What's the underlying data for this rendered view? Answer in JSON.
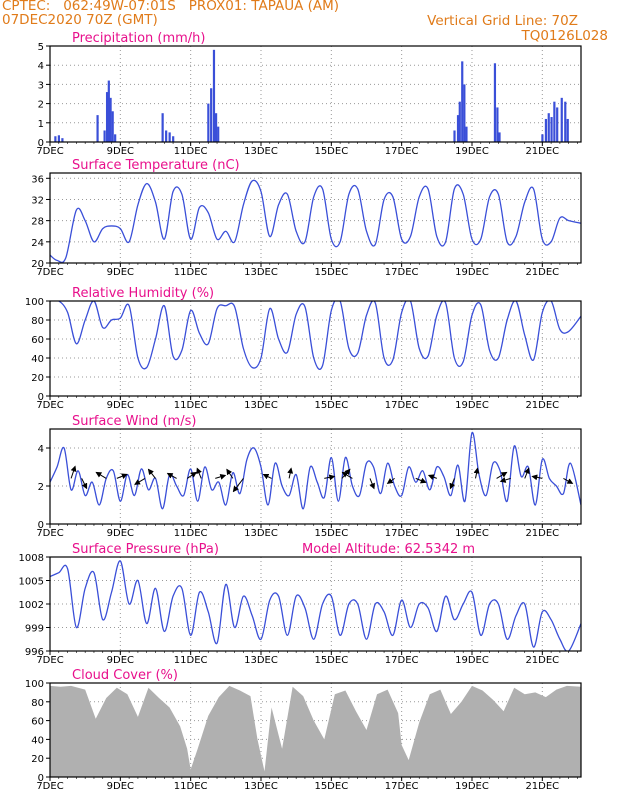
{
  "header": {
    "line1": "CPTEC:   062:49W-07:01S   PROX01: TAPAUA (AM)",
    "line2_left": "07DEC2020 70Z (GMT)",
    "line2_right": "Vertical Grid Line: 70Z",
    "line3_right": "TQ0126L028"
  },
  "colors": {
    "header": "#e07b1a",
    "title": "#e8108c",
    "series": "#3a4fd8",
    "cloud": "#b0b0b0"
  },
  "x_axis": {
    "ticks": [
      {
        "day": 7,
        "label": "7DEC"
      },
      {
        "day": 9,
        "label": "9DEC"
      },
      {
        "day": 11,
        "label": "11DEC"
      },
      {
        "day": 13,
        "label": "13DEC"
      },
      {
        "day": 15,
        "label": "15DEC"
      },
      {
        "day": 17,
        "label": "17DEC"
      },
      {
        "day": 19,
        "label": "19DEC"
      },
      {
        "day": 21,
        "label": "21DEC"
      }
    ],
    "range": [
      7,
      22.1
    ]
  },
  "chart_data": [
    {
      "type": "bar",
      "title": "Precipitation (mm/h)",
      "ylim": [
        0,
        5
      ],
      "yticks": [
        0,
        1,
        2,
        3,
        4,
        5
      ],
      "values": [
        {
          "x": 7.15,
          "y": 0.3
        },
        {
          "x": 7.25,
          "y": 0.35
        },
        {
          "x": 7.35,
          "y": 0.2
        },
        {
          "x": 8.35,
          "y": 1.4
        },
        {
          "x": 8.55,
          "y": 0.6
        },
        {
          "x": 8.62,
          "y": 2.6
        },
        {
          "x": 8.67,
          "y": 3.2
        },
        {
          "x": 8.72,
          "y": 2.3
        },
        {
          "x": 8.78,
          "y": 1.6
        },
        {
          "x": 8.85,
          "y": 0.4
        },
        {
          "x": 10.2,
          "y": 1.5
        },
        {
          "x": 10.3,
          "y": 0.6
        },
        {
          "x": 10.4,
          "y": 0.5
        },
        {
          "x": 10.5,
          "y": 0.3
        },
        {
          "x": 11.5,
          "y": 2.0
        },
        {
          "x": 11.58,
          "y": 2.8
        },
        {
          "x": 11.66,
          "y": 4.8
        },
        {
          "x": 11.72,
          "y": 1.5
        },
        {
          "x": 11.78,
          "y": 0.8
        },
        {
          "x": 18.5,
          "y": 0.6
        },
        {
          "x": 18.6,
          "y": 1.4
        },
        {
          "x": 18.65,
          "y": 2.1
        },
        {
          "x": 18.72,
          "y": 4.2
        },
        {
          "x": 18.78,
          "y": 3.0
        },
        {
          "x": 18.84,
          "y": 0.8
        },
        {
          "x": 19.65,
          "y": 4.1
        },
        {
          "x": 19.72,
          "y": 1.8
        },
        {
          "x": 19.78,
          "y": 0.5
        },
        {
          "x": 21.0,
          "y": 0.4
        },
        {
          "x": 21.1,
          "y": 1.2
        },
        {
          "x": 21.18,
          "y": 1.5
        },
        {
          "x": 21.26,
          "y": 1.3
        },
        {
          "x": 21.34,
          "y": 2.1
        },
        {
          "x": 21.42,
          "y": 1.8
        },
        {
          "x": 21.55,
          "y": 2.3
        },
        {
          "x": 21.65,
          "y": 2.1
        },
        {
          "x": 21.72,
          "y": 1.2
        }
      ]
    },
    {
      "type": "line",
      "title": "Surface Temperature (nC)",
      "ylim": [
        20,
        37
      ],
      "yticks": [
        20,
        24,
        28,
        32,
        36
      ],
      "x": [
        7.0,
        7.2,
        7.45,
        7.75,
        8.0,
        8.25,
        8.5,
        8.75,
        9.0,
        9.25,
        9.5,
        9.75,
        10.0,
        10.25,
        10.5,
        10.75,
        11.0,
        11.25,
        11.5,
        11.75,
        12.0,
        12.25,
        12.5,
        12.75,
        13.0,
        13.25,
        13.5,
        13.75,
        14.0,
        14.25,
        14.5,
        14.75,
        15.0,
        15.25,
        15.5,
        15.75,
        16.0,
        16.25,
        16.5,
        16.75,
        17.0,
        17.25,
        17.5,
        17.75,
        18.0,
        18.25,
        18.5,
        18.75,
        19.0,
        19.25,
        19.5,
        19.75,
        20.0,
        20.25,
        20.5,
        20.75,
        21.0,
        21.25,
        21.5,
        21.75,
        22.1
      ],
      "values": [
        21.5,
        20.5,
        21,
        30,
        28,
        24,
        26.5,
        27,
        26.5,
        24,
        31,
        35,
        31.5,
        24.5,
        33.5,
        33,
        24.5,
        30.5,
        29.5,
        24.5,
        26,
        24,
        31,
        35.5,
        33.5,
        25,
        31,
        33,
        26,
        24,
        32.5,
        34,
        24.5,
        24,
        33,
        34,
        26,
        23.5,
        32,
        32.5,
        24.5,
        25,
        32.5,
        34,
        25,
        24,
        34,
        33,
        24.5,
        24.5,
        32.5,
        33,
        24,
        25,
        31.5,
        34,
        24.5,
        24,
        28.5,
        28,
        27.5
      ]
    },
    {
      "type": "line",
      "title": "Relative Humidity (%)",
      "ylim": [
        0,
        100
      ],
      "yticks": [
        0,
        20,
        40,
        60,
        80,
        100
      ],
      "x": [
        7.0,
        7.25,
        7.5,
        7.75,
        8.0,
        8.25,
        8.5,
        8.75,
        9.0,
        9.25,
        9.5,
        9.75,
        10.0,
        10.25,
        10.5,
        10.75,
        11.0,
        11.25,
        11.5,
        11.75,
        12.0,
        12.25,
        12.5,
        12.75,
        13.0,
        13.25,
        13.5,
        13.75,
        14.0,
        14.25,
        14.5,
        14.75,
        15.0,
        15.25,
        15.5,
        15.75,
        16.0,
        16.25,
        16.5,
        16.75,
        17.0,
        17.25,
        17.5,
        17.75,
        18.0,
        18.25,
        18.5,
        18.75,
        19.0,
        19.25,
        19.5,
        19.75,
        20.0,
        20.25,
        20.5,
        20.75,
        21.0,
        21.25,
        21.5,
        21.75,
        22.1
      ],
      "values": [
        100,
        100,
        88,
        55,
        80,
        100,
        72,
        80,
        82,
        95,
        40,
        30,
        60,
        95,
        42,
        48,
        90,
        66,
        55,
        92,
        95,
        94,
        50,
        30,
        40,
        92,
        60,
        46,
        86,
        94,
        40,
        32,
        90,
        100,
        50,
        45,
        85,
        98,
        40,
        38,
        88,
        100,
        50,
        42,
        85,
        98,
        40,
        36,
        85,
        96,
        48,
        40,
        80,
        100,
        64,
        38,
        88,
        100,
        70,
        68,
        84
      ]
    },
    {
      "type": "line",
      "title": "Surface Wind (m/s)",
      "ylim": [
        0,
        5
      ],
      "yticks": [
        0,
        2,
        4
      ],
      "x": [
        7.0,
        7.2,
        7.4,
        7.6,
        7.8,
        8.0,
        8.2,
        8.4,
        8.6,
        8.8,
        9.0,
        9.2,
        9.4,
        9.6,
        9.8,
        10.0,
        10.2,
        10.4,
        10.6,
        10.8,
        11.0,
        11.2,
        11.4,
        11.6,
        11.8,
        12.0,
        12.2,
        12.4,
        12.6,
        12.8,
        13.0,
        13.2,
        13.4,
        13.6,
        13.8,
        14.0,
        14.2,
        14.4,
        14.6,
        14.8,
        15.0,
        15.2,
        15.4,
        15.6,
        15.8,
        16.0,
        16.2,
        16.4,
        16.6,
        16.8,
        17.0,
        17.2,
        17.4,
        17.6,
        17.8,
        18.0,
        18.2,
        18.4,
        18.6,
        18.8,
        19.0,
        19.2,
        19.4,
        19.6,
        19.8,
        20.0,
        20.2,
        20.4,
        20.6,
        20.8,
        21.0,
        21.2,
        21.4,
        21.6,
        21.8,
        22.1
      ],
      "values": [
        2.2,
        3.0,
        4.0,
        1.8,
        2.8,
        1.5,
        2.2,
        1.0,
        2.4,
        2.8,
        1.2,
        2.6,
        1.5,
        2.9,
        1.8,
        2.4,
        0.8,
        2.6,
        2.0,
        1.5,
        2.9,
        1.2,
        3.0,
        1.8,
        2.2,
        1.0,
        2.7,
        1.6,
        3.4,
        4.0,
        3.0,
        1.0,
        3.2,
        2.0,
        1.5,
        2.6,
        0.8,
        3.0,
        2.2,
        1.4,
        3.5,
        1.2,
        3.5,
        2.0,
        1.5,
        3.2,
        3.0,
        1.6,
        3.2,
        2.0,
        1.5,
        3.0,
        2.2,
        2.8,
        1.8,
        3.0,
        2.5,
        1.5,
        3.1,
        1.2,
        4.8,
        2.6,
        1.5,
        3.2,
        2.8,
        1.2,
        4.1,
        2.5,
        3.0,
        1.0,
        3.4,
        2.4,
        2.0,
        1.6,
        3.2,
        1.0
      ],
      "arrows": [
        {
          "x": 7.6,
          "dx": 4,
          "dy": -12
        },
        {
          "x": 7.9,
          "dx": 5,
          "dy": 10
        },
        {
          "x": 8.6,
          "dx": -10,
          "dy": -6
        },
        {
          "x": 8.9,
          "dx": 10,
          "dy": -4
        },
        {
          "x": 9.7,
          "dx": -10,
          "dy": 6
        },
        {
          "x": 10.0,
          "dx": -7,
          "dy": -9
        },
        {
          "x": 10.6,
          "dx": -9,
          "dy": -5
        },
        {
          "x": 10.9,
          "dx": 9,
          "dy": -6
        },
        {
          "x": 11.3,
          "dx": -4,
          "dy": -10
        },
        {
          "x": 11.7,
          "dx": 10,
          "dy": -3
        },
        {
          "x": 12.2,
          "dx": -6,
          "dy": -9
        },
        {
          "x": 12.5,
          "dx": -10,
          "dy": 13
        },
        {
          "x": 13.3,
          "dx": -8,
          "dy": -4
        },
        {
          "x": 13.8,
          "dx": 2,
          "dy": -10
        },
        {
          "x": 14.8,
          "dx": 10,
          "dy": -2
        },
        {
          "x": 15.3,
          "dx": 8,
          "dy": -9
        },
        {
          "x": 15.6,
          "dx": -10,
          "dy": -6
        },
        {
          "x": 16.1,
          "dx": 4,
          "dy": 10
        },
        {
          "x": 16.8,
          "dx": -7,
          "dy": 5
        },
        {
          "x": 17.4,
          "dx": 10,
          "dy": 4
        },
        {
          "x": 18.0,
          "dx": -8,
          "dy": -3
        },
        {
          "x": 18.5,
          "dx": -4,
          "dy": 10
        },
        {
          "x": 19.1,
          "dx": 2,
          "dy": -10
        },
        {
          "x": 19.7,
          "dx": 10,
          "dy": -6
        },
        {
          "x": 20.1,
          "dx": -10,
          "dy": 3
        },
        {
          "x": 20.5,
          "dx": 4,
          "dy": -10
        },
        {
          "x": 21.0,
          "dx": -10,
          "dy": -2
        },
        {
          "x": 21.6,
          "dx": 9,
          "dy": 5
        }
      ]
    },
    {
      "type": "line",
      "title": "Surface Pressure (hPa)",
      "annotation": "Model Altitude: 62.5342 m",
      "ylim": [
        996,
        1008
      ],
      "yticks": [
        996,
        999,
        1002,
        1005,
        1008
      ],
      "x": [
        7.0,
        7.25,
        7.5,
        7.75,
        8.0,
        8.25,
        8.5,
        8.75,
        9.0,
        9.25,
        9.5,
        9.75,
        10.0,
        10.25,
        10.5,
        10.75,
        11.0,
        11.25,
        11.5,
        11.75,
        12.0,
        12.25,
        12.5,
        12.75,
        13.0,
        13.25,
        13.5,
        13.75,
        14.0,
        14.25,
        14.5,
        14.75,
        15.0,
        15.25,
        15.5,
        15.75,
        16.0,
        16.25,
        16.5,
        16.75,
        17.0,
        17.25,
        17.5,
        17.75,
        18.0,
        18.25,
        18.5,
        18.75,
        19.0,
        19.25,
        19.5,
        19.75,
        20.0,
        20.25,
        20.5,
        20.75,
        21.0,
        21.25,
        21.5,
        21.75,
        22.1
      ],
      "values": [
        1005.5,
        1006,
        1006.5,
        999,
        1004,
        1006,
        1000,
        1003.5,
        1007.5,
        1002,
        1005,
        999.5,
        1004,
        998.5,
        1003,
        1004,
        998,
        1003.5,
        1001,
        997,
        1004.5,
        999,
        1003,
        1000.5,
        997.5,
        1002.5,
        1003,
        998,
        1003,
        1001.5,
        997.5,
        1002,
        1003,
        998,
        1002,
        1002,
        997.5,
        1002,
        1001,
        998,
        1002.5,
        999,
        1002,
        1001.5,
        998.5,
        1003,
        1000,
        1002,
        1003.5,
        998,
        1002,
        1002,
        997.5,
        1000.5,
        1002,
        996.5,
        1001,
        1000,
        997.5,
        996,
        999.5
      ]
    },
    {
      "type": "area",
      "title": "Cloud Cover (%)",
      "ylim": [
        0,
        100
      ],
      "yticks": [
        0,
        20,
        40,
        60,
        80,
        100
      ],
      "x": [
        7.0,
        7.3,
        7.6,
        8.0,
        8.3,
        8.6,
        8.9,
        9.2,
        9.5,
        9.8,
        10.1,
        10.4,
        10.7,
        10.9,
        11.0,
        11.2,
        11.5,
        11.8,
        12.1,
        12.4,
        12.7,
        12.9,
        13.1,
        13.3,
        13.6,
        13.9,
        14.2,
        14.5,
        14.8,
        15.1,
        15.4,
        15.7,
        16.0,
        16.3,
        16.6,
        16.9,
        17.0,
        17.2,
        17.5,
        17.8,
        18.1,
        18.4,
        18.7,
        19.0,
        19.3,
        19.6,
        19.9,
        20.2,
        20.5,
        20.8,
        21.1,
        21.4,
        21.7,
        22.1
      ],
      "values": [
        97,
        96,
        97,
        93,
        62,
        84,
        95,
        88,
        64,
        95,
        84,
        74,
        54,
        30,
        8,
        30,
        65,
        85,
        97,
        92,
        86,
        40,
        6,
        74,
        30,
        96,
        86,
        60,
        40,
        88,
        92,
        70,
        50,
        88,
        93,
        68,
        34,
        18,
        58,
        88,
        93,
        67,
        80,
        97,
        92,
        82,
        70,
        95,
        88,
        90,
        85,
        93,
        97,
        96
      ]
    }
  ]
}
